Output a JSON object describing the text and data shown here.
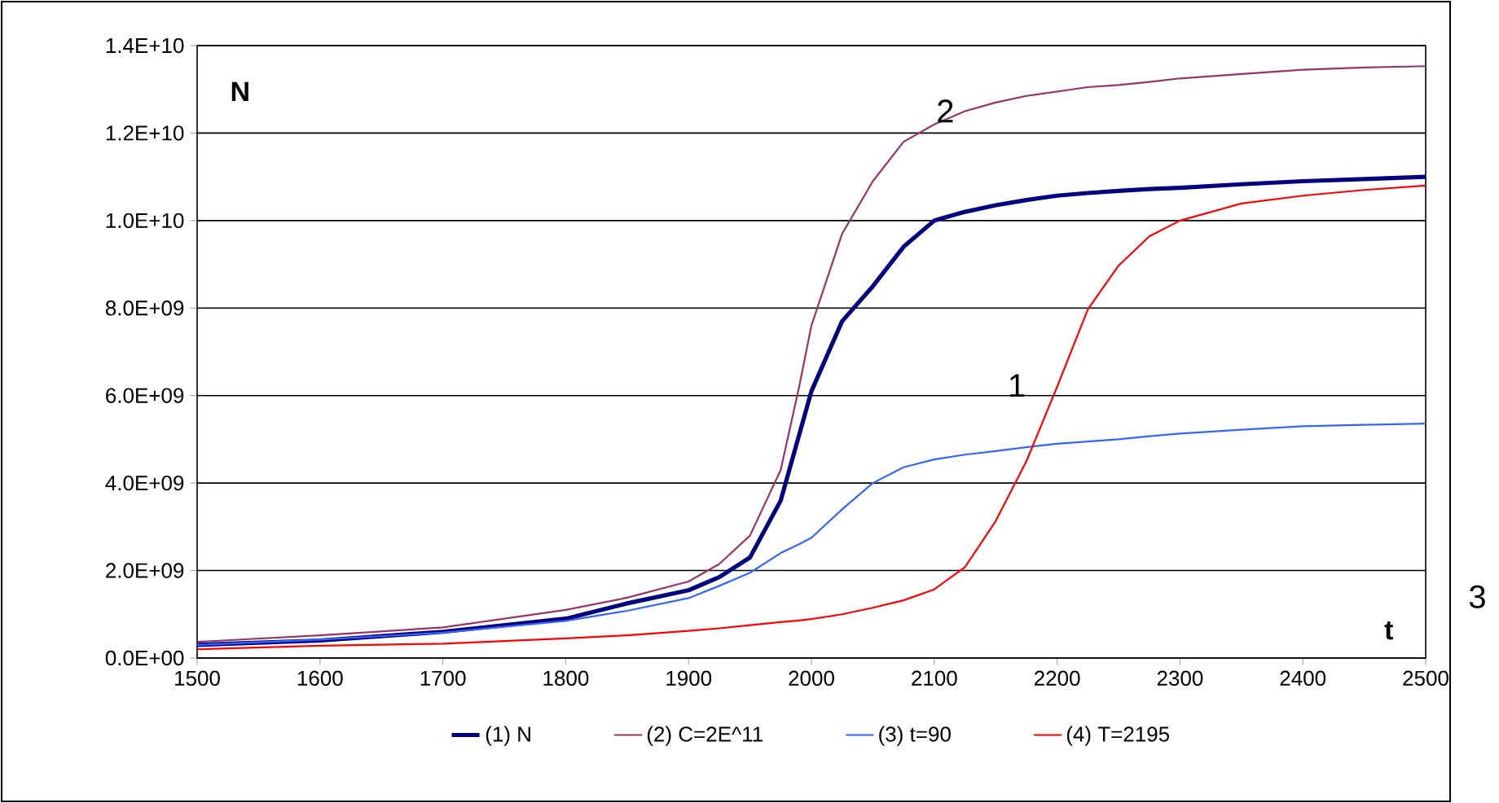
{
  "chart_data": {
    "type": "line",
    "xlabel": "t",
    "ylabel": "N",
    "x": [
      1500,
      1600,
      1700,
      1800,
      1850,
      1900,
      1925,
      1950,
      1975,
      1990,
      2000,
      2025,
      2050,
      2075,
      2100,
      2125,
      2150,
      2175,
      2200,
      2225,
      2250,
      2275,
      2300,
      2350,
      2400,
      2450,
      2500
    ],
    "series": [
      {
        "name": "(1)  N",
        "color": "#000080",
        "values": [
          300000000.0,
          400000000.0,
          600000000.0,
          900000000.0,
          1250000000.0,
          1550000000.0,
          1850000000.0,
          2300000000.0,
          3600000000.0,
          5100000000.0,
          6100000000.0,
          7700000000.0,
          8500000000.0,
          9400000000.0,
          10000000000.0,
          10200000000.0,
          10350000000.0,
          10470000000.0,
          10570000000.0,
          10630000000.0,
          10680000000.0,
          10720000000.0,
          10750000000.0,
          10830000000.0,
          10900000000.0,
          10950000000.0,
          11000000000.0
        ]
      },
      {
        "name": "(2)  C=2E^11",
        "color": "#993366",
        "values": [
          370000000.0,
          520000000.0,
          700000000.0,
          1100000000.0,
          1380000000.0,
          1750000000.0,
          2150000000.0,
          2800000000.0,
          4300000000.0,
          6200000000.0,
          7600000000.0,
          9700000000.0,
          10900000000.0,
          11800000000.0,
          12200000000.0,
          12500000000.0,
          12700000000.0,
          12850000000.0,
          12950000000.0,
          13050000000.0,
          13100000000.0,
          13170000000.0,
          13250000000.0,
          13350000000.0,
          13450000000.0,
          13500000000.0,
          13530000000.0
        ]
      },
      {
        "name": "(3)  t=90",
        "color": "#3366ff",
        "values": [
          300000000.0,
          420000000.0,
          580000000.0,
          850000000.0,
          1080000000.0,
          1370000000.0,
          1650000000.0,
          1950000000.0,
          2400000000.0,
          2600000000.0,
          2750000000.0,
          3400000000.0,
          4000000000.0,
          4360000000.0,
          4540000000.0,
          4650000000.0,
          4730000000.0,
          4820000000.0,
          4900000000.0,
          4950000000.0,
          5000000000.0,
          5070000000.0,
          5130000000.0,
          5220000000.0,
          5300000000.0,
          5330000000.0,
          5360000000.0
        ]
      },
      {
        "name": "(4)  T=2195",
        "color": "#ff0000",
        "values": [
          200000000.0,
          280000000.0,
          330000000.0,
          450000000.0,
          520000000.0,
          620000000.0,
          680000000.0,
          750000000.0,
          820000000.0,
          860000000.0,
          890000000.0,
          1000000000.0,
          1150000000.0,
          1320000000.0,
          1570000000.0,
          2080000000.0,
          3130000000.0,
          4500000000.0,
          6200000000.0,
          7970000000.0,
          8970000000.0,
          9640000000.0,
          10000000000.0,
          10390000000.0,
          10570000000.0,
          10700000000.0,
          10800000000.0
        ]
      }
    ],
    "xlim": [
      1500,
      2500
    ],
    "ylim": [
      0,
      14000000000.0
    ],
    "xticks": [
      1500,
      1600,
      1700,
      1800,
      1900,
      2000,
      2100,
      2200,
      2300,
      2400,
      2500
    ],
    "yticks": [
      {
        "value": 0,
        "label": "0.0E+00"
      },
      {
        "value": 2000000000.0,
        "label": "2.0E+09"
      },
      {
        "value": 4000000000.0,
        "label": "4.0E+09"
      },
      {
        "value": 6000000000.0,
        "label": "6.0E+09"
      },
      {
        "value": 8000000000.0,
        "label": "8.0E+09"
      },
      {
        "value": 10000000000.0,
        "label": "1.0E+10"
      },
      {
        "value": 12000000000.0,
        "label": "1.2E+10"
      },
      {
        "value": 14000000000.0,
        "label": "1.4E+10"
      }
    ],
    "grid": "y",
    "legend": "bottom",
    "marker": "none",
    "line_style": "solid",
    "annotations": [
      {
        "text": "2",
        "x": 2100,
        "y": 12200000000.0
      },
      "1",
      "3"
    ]
  }
}
